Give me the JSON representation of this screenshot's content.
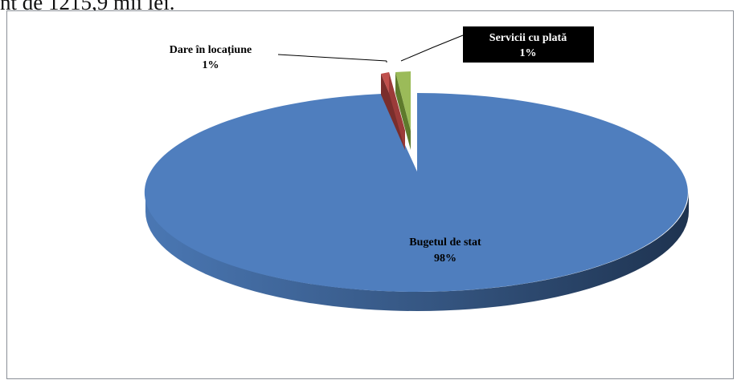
{
  "page": {
    "top_text": "nt de 1215,9 mii lei."
  },
  "colors": {
    "bugetul": "#4F7EBE",
    "bugetul_side": "#2B4A73",
    "locatiune": "#C0504D",
    "locatiune_side": "#7A2E2C",
    "servicii": "#9BBB59",
    "servicii_side": "#5E7A2C",
    "callout_bg": "#000000",
    "callout_text": "#ffffff"
  },
  "chart_data": {
    "type": "pie",
    "three_d": true,
    "exploded": true,
    "slices": [
      {
        "label": "Bugetul de stat",
        "percent_label": "98%",
        "value": 98
      },
      {
        "label": "Dare în locațiune",
        "percent_label": "1%",
        "value": 1
      },
      {
        "label": "Servicii cu plată",
        "percent_label": "1%",
        "value": 1
      }
    ],
    "legend": "none",
    "data_labels": "category and percent"
  }
}
